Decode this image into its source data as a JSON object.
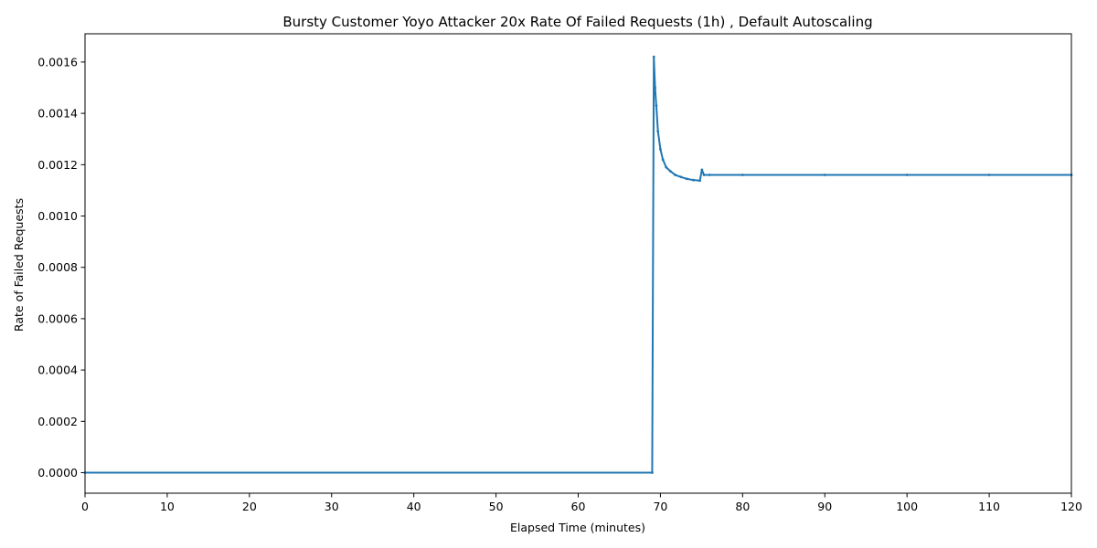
{
  "chart_data": {
    "type": "line",
    "title": "Bursty Customer Yoyo Attacker 20x Rate Of Failed Requests (1h) , Default Autoscaling",
    "xlabel": "Elapsed Time (minutes)",
    "ylabel": "Rate of Failed Requests",
    "xlim": [
      0,
      120
    ],
    "ylim": [
      -8e-05,
      0.00171
    ],
    "x_ticks": [
      0,
      10,
      20,
      30,
      40,
      50,
      60,
      70,
      80,
      90,
      100,
      110,
      120
    ],
    "x_tick_labels": [
      "0",
      "10",
      "20",
      "30",
      "40",
      "50",
      "60",
      "70",
      "80",
      "90",
      "100",
      "110",
      "120"
    ],
    "y_ticks": [
      0,
      0.0002,
      0.0004,
      0.0006,
      0.0008,
      0.001,
      0.0012,
      0.0014,
      0.0016
    ],
    "y_tick_labels": [
      "0.0000",
      "0.0002",
      "0.0004",
      "0.0006",
      "0.0008",
      "0.0010",
      "0.0012",
      "0.0014",
      "0.0016"
    ],
    "grid": false,
    "legend": "none",
    "series_color": "#1f77b4",
    "series": [
      {
        "x": [
          0,
          69.0,
          69.2,
          69.35,
          69.5,
          69.7,
          70.0,
          70.3,
          70.7,
          71.2,
          71.8,
          72.5,
          73.2,
          74.0,
          74.8,
          75.05,
          75.3,
          76.0,
          80,
          90,
          100,
          110,
          120
        ],
        "y": [
          0,
          0,
          0.00162,
          0.0015,
          0.00143,
          0.00133,
          0.00126,
          0.00122,
          0.00119,
          0.001175,
          0.00116,
          0.001152,
          0.001145,
          0.00114,
          0.001138,
          0.00118,
          0.00116,
          0.00116,
          0.00116,
          0.00116,
          0.00116,
          0.00116,
          0.00116
        ]
      }
    ]
  }
}
